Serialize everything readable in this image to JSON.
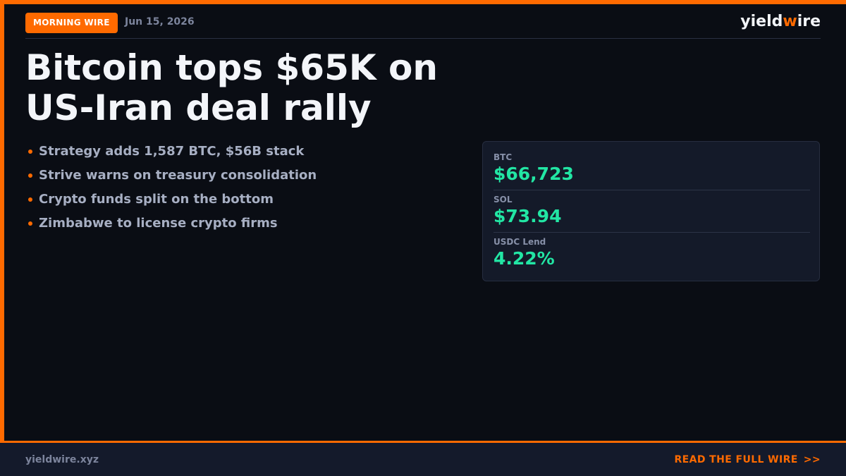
{
  "header": {
    "badge": "MORNING WIRE",
    "date": "Jun 15, 2026",
    "brand_part1": "yield",
    "brand_accent": "w",
    "brand_part2": "ire"
  },
  "headline": "Bitcoin tops $65K on US-Iran deal rally",
  "bullets": [
    "Strategy adds 1,587 BTC, $56B stack",
    "Strive warns on treasury consolidation",
    "Crypto funds split on the bottom",
    "Zimbabwe to license crypto firms"
  ],
  "stats": [
    {
      "label": "BTC",
      "value": "$66,723"
    },
    {
      "label": "SOL",
      "value": "$73.94"
    },
    {
      "label": "USDC Lend",
      "value": "4.22%"
    }
  ],
  "footer": {
    "url": "yieldwire.xyz",
    "cta": "READ THE FULL WIRE",
    "cta_arrow": ">>"
  },
  "colors": {
    "accent": "#ff6a00",
    "background": "#0a0d14",
    "positive": "#22e6a4"
  }
}
